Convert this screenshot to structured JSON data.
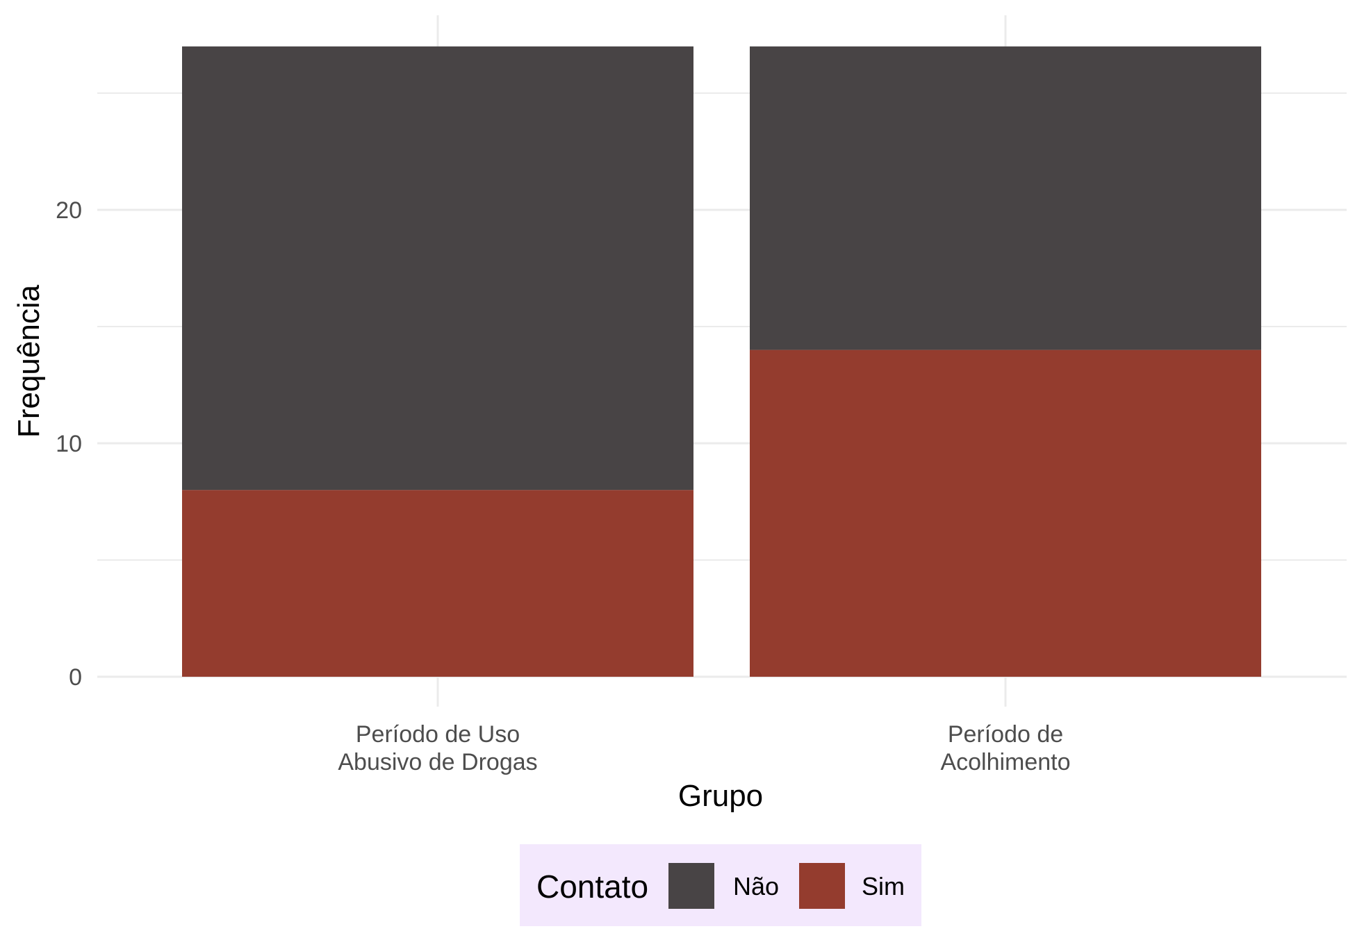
{
  "chart_data": {
    "type": "bar",
    "stacked": true,
    "categories": [
      [
        "Período de Uso",
        "Abusivo de Drogas"
      ],
      [
        "Período de",
        "Acolhimento"
      ]
    ],
    "series": [
      {
        "name": "Sim",
        "values": [
          8,
          14
        ],
        "color": "#943c2e"
      },
      {
        "name": "Não",
        "values": [
          19,
          13
        ],
        "color": "#484445"
      }
    ],
    "xlabel": "Grupo",
    "ylabel": "Frequência",
    "ylim": [
      0,
      28.5
    ],
    "yticks": [
      0,
      10,
      20
    ],
    "grid": true,
    "legend": {
      "title": "Contato",
      "position": "bottom",
      "order": [
        "Não",
        "Sim"
      ],
      "background": "#f3e8fd"
    }
  }
}
